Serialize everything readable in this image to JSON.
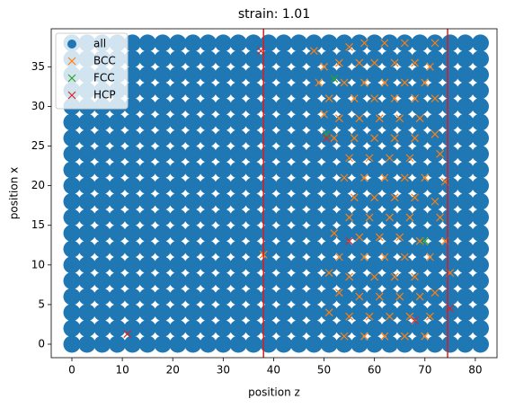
{
  "chart_data": {
    "type": "scatter",
    "title": "strain: 1.01",
    "xlabel": "position z",
    "ylabel": "position x",
    "xlim": [
      -4.1,
      84.3
    ],
    "ylim": [
      -1.7,
      39.8
    ],
    "xticks": [
      0,
      10,
      20,
      30,
      40,
      50,
      60,
      70,
      80
    ],
    "yticks": [
      0,
      5,
      10,
      15,
      20,
      25,
      30,
      35
    ],
    "legend": "upper left",
    "vlines": {
      "color": "#e41a1c",
      "values": [
        38,
        74.5
      ]
    },
    "series": [
      {
        "name": "all",
        "color": "#1f77b4",
        "marker": "o",
        "x": [
          0,
          3,
          6,
          9,
          12,
          15,
          18,
          21,
          24,
          27,
          30,
          33,
          36,
          39,
          42,
          45,
          48,
          51,
          54,
          57,
          60,
          63,
          66,
          69,
          72,
          75,
          78,
          81,
          0,
          3,
          6,
          9,
          12,
          15,
          18,
          21,
          24,
          27,
          30,
          33,
          36,
          39,
          42,
          45,
          48,
          51,
          54,
          57,
          60,
          63,
          66,
          69,
          72,
          75,
          78,
          81,
          0,
          3,
          6,
          9,
          12,
          15,
          18,
          21,
          24,
          27,
          30,
          33,
          36,
          39,
          42,
          45,
          48,
          51,
          54,
          57,
          60,
          63,
          66,
          69,
          72,
          75,
          78,
          81,
          0,
          3,
          6,
          9,
          12,
          15,
          18,
          21,
          24,
          27,
          30,
          33,
          36,
          39,
          42,
          45,
          48,
          51,
          54,
          57,
          60,
          63,
          66,
          69,
          72,
          75,
          78,
          81,
          0,
          3,
          6,
          9,
          12,
          15,
          18,
          21,
          24,
          27,
          30,
          33,
          36,
          39,
          42,
          45,
          48,
          51,
          54,
          57,
          60,
          63,
          66,
          69,
          72,
          75,
          78,
          81,
          0,
          3,
          6,
          9,
          12,
          15,
          18,
          21,
          24,
          27,
          30,
          33,
          36,
          39,
          42,
          45,
          48,
          51,
          54,
          57,
          60,
          63,
          66,
          69,
          72,
          75,
          78,
          81,
          0,
          3,
          6,
          9,
          12,
          15,
          18,
          21,
          24,
          27,
          30,
          33,
          36,
          39,
          42,
          45,
          48,
          51,
          54,
          57,
          60,
          63,
          66,
          69,
          72,
          75,
          78,
          81,
          0,
          3,
          6,
          9,
          12,
          15,
          18,
          21,
          24,
          27,
          30,
          33,
          36,
          39,
          42,
          45,
          48,
          51,
          54,
          57,
          60,
          63,
          66,
          69,
          72,
          75,
          78,
          81,
          0,
          3,
          6,
          9,
          12,
          15,
          18,
          21,
          24,
          27,
          30,
          33,
          36,
          39,
          42,
          45,
          48,
          51,
          54,
          57,
          60,
          63,
          66,
          69,
          72,
          75,
          78,
          81,
          0,
          3,
          6,
          9,
          12,
          15,
          18,
          21,
          24,
          27,
          30,
          33,
          36,
          39,
          42,
          45,
          48,
          51,
          54,
          57,
          60,
          63,
          66,
          69,
          72,
          75,
          78,
          81,
          0,
          3,
          6,
          9,
          12,
          15,
          18,
          21,
          24,
          27,
          30,
          33,
          36,
          39,
          42,
          45,
          48,
          51,
          54,
          57,
          60,
          63,
          66,
          69,
          72,
          75,
          78,
          81,
          0,
          3,
          6,
          9,
          12,
          15,
          18,
          21,
          24,
          27,
          30,
          33,
          36,
          39,
          42,
          45,
          48,
          51,
          54,
          57,
          60,
          63,
          66,
          69,
          72,
          75,
          78,
          81,
          0,
          3,
          6,
          9,
          12,
          15,
          18,
          21,
          24,
          27,
          30,
          33,
          36,
          39,
          42,
          45,
          48,
          51,
          54,
          57,
          60,
          63,
          66,
          69,
          72,
          75,
          78,
          81,
          0,
          3,
          6,
          9,
          12,
          15,
          18,
          21,
          24,
          27,
          30,
          33,
          36,
          39,
          42,
          45,
          48,
          51,
          54,
          57,
          60,
          63,
          66,
          69,
          72,
          75,
          78,
          81,
          0,
          3,
          6,
          9,
          12,
          15,
          18,
          21,
          24,
          27,
          30,
          33,
          36,
          39,
          42,
          45,
          48,
          51,
          54,
          57,
          60,
          63,
          66,
          69,
          72,
          75,
          78,
          81,
          0,
          3,
          6,
          9,
          12,
          15,
          18,
          21,
          24,
          27,
          30,
          33,
          36,
          39,
          42,
          45,
          48,
          51,
          54,
          57,
          60,
          63,
          66,
          69,
          72,
          75,
          78,
          81,
          0,
          3,
          6,
          9,
          12,
          15,
          18,
          21,
          24,
          27,
          30,
          33,
          36,
          39,
          42,
          45,
          48,
          51,
          54,
          57,
          60,
          63,
          66,
          69,
          72,
          75,
          78,
          81,
          0,
          3,
          6,
          9,
          12,
          15,
          18,
          21,
          24,
          27,
          30,
          33,
          36,
          39,
          42,
          45,
          48,
          51,
          54,
          57,
          60,
          63,
          66,
          69,
          72,
          75,
          78,
          81,
          0,
          3,
          6,
          9,
          12,
          15,
          18,
          21,
          24,
          27,
          30,
          33,
          36,
          39,
          42,
          45,
          48,
          51,
          54,
          57,
          60,
          63,
          66,
          69,
          72,
          75,
          78,
          81,
          0,
          3,
          6,
          9,
          12,
          15,
          18,
          21,
          24,
          27,
          30,
          33,
          36,
          39,
          42,
          45,
          48,
          51,
          54,
          57,
          60,
          63,
          66,
          69,
          72,
          75,
          78,
          81
        ],
        "y": [
          0,
          0,
          0,
          0,
          0,
          0,
          0,
          0,
          0,
          0,
          0,
          0,
          0,
          0,
          0,
          0,
          0,
          0,
          0,
          0,
          0,
          0,
          0,
          0,
          0,
          0,
          0,
          0,
          2,
          2,
          2,
          2,
          2,
          2,
          2,
          2,
          2,
          2,
          2,
          2,
          2,
          2,
          2,
          2,
          2,
          2,
          2,
          2,
          2,
          2,
          2,
          2,
          2,
          2,
          2,
          2,
          4,
          4,
          4,
          4,
          4,
          4,
          4,
          4,
          4,
          4,
          4,
          4,
          4,
          4,
          4,
          4,
          4,
          4,
          4,
          4,
          4,
          4,
          4,
          4,
          4,
          4,
          4,
          4,
          6,
          6,
          6,
          6,
          6,
          6,
          6,
          6,
          6,
          6,
          6,
          6,
          6,
          6,
          6,
          6,
          6,
          6,
          6,
          6,
          6,
          6,
          6,
          6,
          6,
          6,
          6,
          6,
          8,
          8,
          8,
          8,
          8,
          8,
          8,
          8,
          8,
          8,
          8,
          8,
          8,
          8,
          8,
          8,
          8,
          8,
          8,
          8,
          8,
          8,
          8,
          8,
          8,
          8,
          8,
          8,
          10,
          10,
          10,
          10,
          10,
          10,
          10,
          10,
          10,
          10,
          10,
          10,
          10,
          10,
          10,
          10,
          10,
          10,
          10,
          10,
          10,
          10,
          10,
          10,
          10,
          10,
          10,
          10,
          12,
          12,
          12,
          12,
          12,
          12,
          12,
          12,
          12,
          12,
          12,
          12,
          12,
          12,
          12,
          12,
          12,
          12,
          12,
          12,
          12,
          12,
          12,
          12,
          12,
          12,
          12,
          12,
          14,
          14,
          14,
          14,
          14,
          14,
          14,
          14,
          14,
          14,
          14,
          14,
          14,
          14,
          14,
          14,
          14,
          14,
          14,
          14,
          14,
          14,
          14,
          14,
          14,
          14,
          14,
          14,
          16,
          16,
          16,
          16,
          16,
          16,
          16,
          16,
          16,
          16,
          16,
          16,
          16,
          16,
          16,
          16,
          16,
          16,
          16,
          16,
          16,
          16,
          16,
          16,
          16,
          16,
          16,
          16,
          18,
          18,
          18,
          18,
          18,
          18,
          18,
          18,
          18,
          18,
          18,
          18,
          18,
          18,
          18,
          18,
          18,
          18,
          18,
          18,
          18,
          18,
          18,
          18,
          18,
          18,
          18,
          18,
          20,
          20,
          20,
          20,
          20,
          20,
          20,
          20,
          20,
          20,
          20,
          20,
          20,
          20,
          20,
          20,
          20,
          20,
          20,
          20,
          20,
          20,
          20,
          20,
          20,
          20,
          20,
          20,
          22,
          22,
          22,
          22,
          22,
          22,
          22,
          22,
          22,
          22,
          22,
          22,
          22,
          22,
          22,
          22,
          22,
          22,
          22,
          22,
          22,
          22,
          22,
          22,
          22,
          22,
          22,
          22,
          24,
          24,
          24,
          24,
          24,
          24,
          24,
          24,
          24,
          24,
          24,
          24,
          24,
          24,
          24,
          24,
          24,
          24,
          24,
          24,
          24,
          24,
          24,
          24,
          24,
          24,
          24,
          24,
          26,
          26,
          26,
          26,
          26,
          26,
          26,
          26,
          26,
          26,
          26,
          26,
          26,
          26,
          26,
          26,
          26,
          26,
          26,
          26,
          26,
          26,
          26,
          26,
          26,
          26,
          26,
          26,
          28,
          28,
          28,
          28,
          28,
          28,
          28,
          28,
          28,
          28,
          28,
          28,
          28,
          28,
          28,
          28,
          28,
          28,
          28,
          28,
          28,
          28,
          28,
          28,
          28,
          28,
          28,
          28,
          30,
          30,
          30,
          30,
          30,
          30,
          30,
          30,
          30,
          30,
          30,
          30,
          30,
          30,
          30,
          30,
          30,
          30,
          30,
          30,
          30,
          30,
          30,
          30,
          30,
          30,
          30,
          30,
          32,
          32,
          32,
          32,
          32,
          32,
          32,
          32,
          32,
          32,
          32,
          32,
          32,
          32,
          32,
          32,
          32,
          32,
          32,
          32,
          32,
          32,
          32,
          32,
          32,
          32,
          32,
          32,
          34,
          34,
          34,
          34,
          34,
          34,
          34,
          34,
          34,
          34,
          34,
          34,
          34,
          34,
          34,
          34,
          34,
          34,
          34,
          34,
          34,
          34,
          34,
          34,
          34,
          34,
          34,
          34,
          36,
          36,
          36,
          36,
          36,
          36,
          36,
          36,
          36,
          36,
          36,
          36,
          36,
          36,
          36,
          36,
          36,
          36,
          36,
          36,
          36,
          36,
          36,
          36,
          36,
          36,
          36,
          36,
          38,
          38,
          38,
          38,
          38,
          38,
          38,
          38,
          38,
          38,
          38,
          38,
          38,
          38,
          38,
          38,
          38,
          38,
          38,
          38,
          38,
          38,
          38,
          38,
          38,
          38,
          38,
          38
        ]
      },
      {
        "name": "BCC",
        "color": "#ff7f0e",
        "marker": "x",
        "x": [
          48,
          55,
          58,
          62,
          66,
          72,
          50,
          53,
          57,
          60,
          64,
          68,
          71,
          49,
          54,
          58,
          62,
          66,
          70,
          51,
          56,
          60,
          64,
          68,
          72,
          50,
          53,
          57,
          61,
          65,
          69,
          52,
          56,
          60,
          64,
          68,
          72,
          55,
          59,
          63,
          67,
          73,
          54,
          58,
          62,
          66,
          70,
          74,
          56,
          60,
          64,
          68,
          72,
          55,
          59,
          63,
          67,
          73,
          52,
          57,
          61,
          65,
          69,
          74,
          38,
          53,
          58,
          62,
          66,
          71,
          51,
          55,
          60,
          64,
          68,
          75,
          53,
          57,
          61,
          65,
          69,
          72,
          51,
          55,
          59,
          63,
          67,
          71,
          54,
          58,
          62,
          66,
          70
        ],
        "y": [
          37,
          37.5,
          38,
          38,
          38,
          38,
          35,
          35.5,
          35.5,
          35.5,
          35.5,
          35.5,
          35,
          33,
          33,
          33,
          33,
          33,
          33,
          31,
          31,
          31,
          31,
          31,
          31,
          29,
          28.5,
          28.5,
          28.5,
          28.5,
          28.5,
          26,
          26,
          26,
          26,
          26,
          26.5,
          23.5,
          23.5,
          23.5,
          23.5,
          24,
          21,
          21,
          21,
          21,
          21,
          20.5,
          18.5,
          18.5,
          18.5,
          18.5,
          18,
          16,
          16,
          16,
          16,
          16,
          14,
          13.5,
          13.5,
          13.5,
          13,
          13,
          11.3,
          11,
          11,
          11,
          11,
          11,
          9,
          8.5,
          8.5,
          8.5,
          8.5,
          9,
          6.5,
          6,
          6,
          6,
          6,
          6.5,
          4,
          3.5,
          3.5,
          3.5,
          3.5,
          3.5,
          1,
          1,
          1,
          1,
          1
        ]
      },
      {
        "name": "FCC",
        "color": "#2ca02c",
        "marker": "x",
        "x": [
          52,
          50.5,
          70
        ],
        "y": [
          33.5,
          26.5,
          13
        ]
      },
      {
        "name": "HCP",
        "color": "#d62728",
        "marker": "x",
        "x": [
          37.5,
          11,
          50.5,
          55,
          75,
          68
        ],
        "y": [
          37,
          1.3,
          26,
          13,
          4.5,
          3
        ]
      }
    ]
  }
}
